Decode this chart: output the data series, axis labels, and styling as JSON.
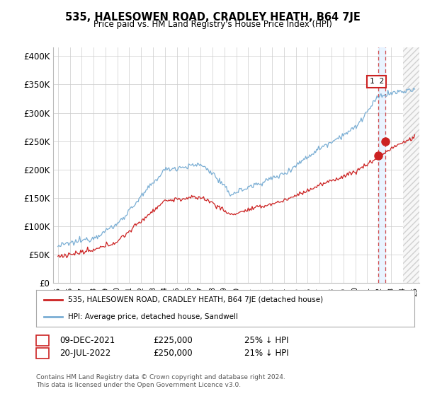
{
  "title": "535, HALESOWEN ROAD, CRADLEY HEATH, B64 7JE",
  "subtitle": "Price paid vs. HM Land Registry's House Price Index (HPI)",
  "ylabel_ticks": [
    "£0",
    "£50K",
    "£100K",
    "£150K",
    "£200K",
    "£250K",
    "£300K",
    "£350K",
    "£400K"
  ],
  "ytick_vals": [
    0,
    50000,
    100000,
    150000,
    200000,
    250000,
    300000,
    350000,
    400000
  ],
  "ylim": [
    0,
    415000
  ],
  "hpi_color": "#7aaed4",
  "price_color": "#cc2222",
  "background_color": "#ffffff",
  "grid_color": "#cccccc",
  "legend_label_price": "535, HALESOWEN ROAD, CRADLEY HEATH, B64 7JE (detached house)",
  "legend_label_hpi": "HPI: Average price, detached house, Sandwell",
  "annotation1_label": "1",
  "annotation1_date": "09-DEC-2021",
  "annotation1_price": "£225,000",
  "annotation1_pct": "25% ↓ HPI",
  "annotation2_label": "2",
  "annotation2_date": "20-JUL-2022",
  "annotation2_price": "£250,000",
  "annotation2_pct": "21% ↓ HPI",
  "footnote": "Contains HM Land Registry data © Crown copyright and database right 2024.\nThis data is licensed under the Open Government Licence v3.0.",
  "sale1_year": 2021.958,
  "sale1_price": 225000,
  "sale2_year": 2022.542,
  "sale2_price": 250000,
  "xlim_left": 1994.6,
  "xlim_right": 2025.4
}
